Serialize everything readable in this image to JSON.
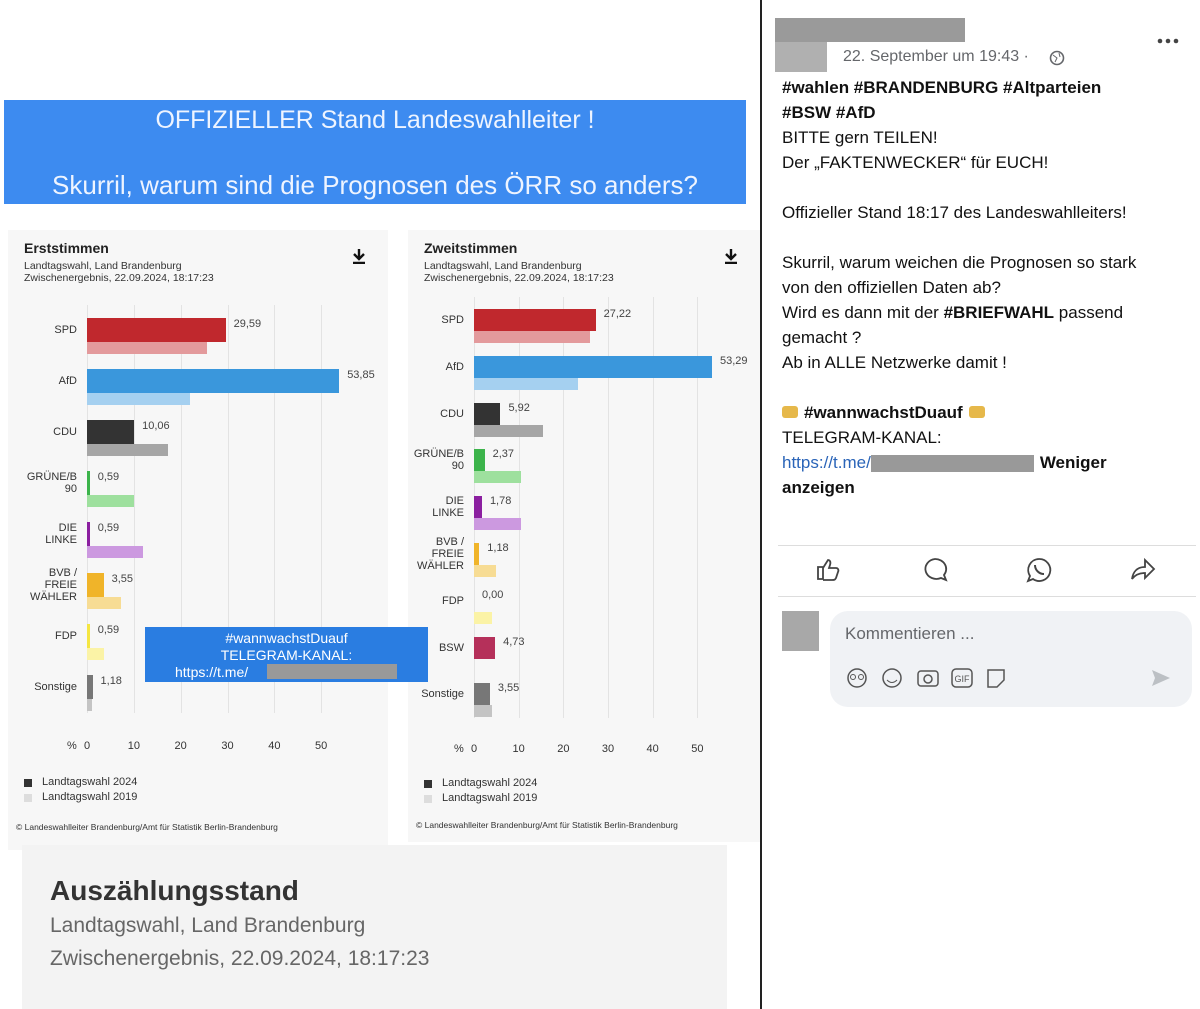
{
  "banner": {
    "line1": "OFFIZIELLER Stand Landeswahlleiter !",
    "line2": "Skurril, warum sind die Prognosen des ÖRR so anders?"
  },
  "chart_data": [
    {
      "type": "bar",
      "orientation": "horizontal",
      "title": "Erststimmen",
      "subtitle": [
        "Landtagswahl, Land Brandenburg",
        "Zwischenergebnis, 22.09.2024, 18:17:23"
      ],
      "categories": [
        "SPD",
        "AfD",
        "CDU",
        "GRÜNE/B\n90",
        "DIE\nLINKE",
        "BVB /\nFREIE\nWÄHLER",
        "FDP",
        "Sonstige"
      ],
      "series": [
        {
          "name": "Landtagswahl 2024",
          "color": "#333333",
          "colors": [
            "#c0282d",
            "#3a97dc",
            "#333333",
            "#3cb44b",
            "#8b1fa0",
            "#f0b429",
            "#f5e642",
            "#777777"
          ],
          "values": [
            29.59,
            53.85,
            10.06,
            0.59,
            0.59,
            3.55,
            0.59,
            1.18
          ],
          "value_labels": [
            "29,59",
            "53,85",
            "10,06",
            "0,59",
            "0,59",
            "3,55",
            "0,59",
            "1,18"
          ]
        },
        {
          "name": "Landtagswahl 2019",
          "color": "#dddddd",
          "colors": [
            "#e39a9c",
            "#a5d0f0",
            "#a6a6a6",
            "#9ee09e",
            "#cc99e0",
            "#f7dc94",
            "#fbf3a6",
            "#c4c4c4"
          ],
          "values": [
            25.6,
            22.0,
            17.3,
            10.0,
            12.0,
            7.3,
            3.6,
            1.1
          ]
        }
      ],
      "x_unit": "%",
      "xlim": [
        0,
        60
      ],
      "xticks": [
        0,
        10,
        20,
        30,
        40,
        50
      ],
      "source": "© Landeswahlleiter Brandenburg/Amt für Statistik Berlin-Brandenburg"
    },
    {
      "type": "bar",
      "orientation": "horizontal",
      "title": "Zweitstimmen",
      "subtitle": [
        "Landtagswahl, Land Brandenburg",
        "Zwischenergebnis, 22.09.2024, 18:17:23"
      ],
      "categories": [
        "SPD",
        "AfD",
        "CDU",
        "GRÜNE/B\n90",
        "DIE\nLINKE",
        "BVB /\nFREIE\nWÄHLER",
        "FDP",
        "BSW",
        "Sonstige"
      ],
      "series": [
        {
          "name": "Landtagswahl 2024",
          "color": "#333333",
          "colors": [
            "#c0282d",
            "#3a97dc",
            "#333333",
            "#3cb44b",
            "#8b1fa0",
            "#f0b429",
            "#f5e642",
            "#b5305a",
            "#777777"
          ],
          "values": [
            27.22,
            53.29,
            5.92,
            2.37,
            1.78,
            1.18,
            0.0,
            4.73,
            3.55
          ],
          "value_labels": [
            "27,22",
            "53,29",
            "5,92",
            "2,37",
            "1,78",
            "1,18",
            "0,00",
            "4,73",
            "3,55"
          ]
        },
        {
          "name": "Landtagswahl 2019",
          "color": "#dddddd",
          "colors": [
            "#e39a9c",
            "#a5d0f0",
            "#a6a6a6",
            "#9ee09e",
            "#cc99e0",
            "#f7dc94",
            "#fbf3a6",
            "#e0a0b8",
            "#c4c4c4"
          ],
          "values": [
            26.0,
            23.3,
            15.5,
            10.5,
            10.5,
            4.9,
            4.0,
            null,
            4.0
          ]
        }
      ],
      "x_unit": "%",
      "xlim": [
        0,
        60
      ],
      "xticks": [
        0,
        10,
        20,
        30,
        40,
        50
      ],
      "source": "© Landeswahlleiter Brandenburg/Amt für Statistik Berlin-Brandenburg"
    }
  ],
  "overlay": {
    "hashtag": "#wannwachstDuauf",
    "telegram": "TELEGRAM-KANAL:",
    "link": "https://t.me/"
  },
  "bottom_card": {
    "title": "Auszählungsstand",
    "line1": "Landtagswahl, Land Brandenburg",
    "line2": "Zwischenergebnis, 22.09.2024, 18:17:23"
  },
  "post": {
    "date": "22. September um 19:43 ·",
    "lines": [
      [
        {
          "text": "#wahlen #BRANDENBURG #Altparteien",
          "bold": true
        }
      ],
      [
        {
          "text": "#BSW #AfD",
          "bold": true
        }
      ],
      [
        {
          "text": "BITTE gern TEILEN!"
        }
      ],
      [
        {
          "text": "Der „FAKTENWECKER“ für EUCH!"
        }
      ],
      null,
      [
        {
          "text": "Offizieller Stand 18:17 des Landeswahlleiters!"
        }
      ],
      null,
      [
        {
          "text": "Skurril, warum weichen die Prognosen so stark"
        }
      ],
      [
        {
          "text": "von den offiziellen Daten ab?"
        }
      ],
      [
        {
          "text": "Wird es dann mit der "
        },
        {
          "text": "#BRIEFWAHL",
          "bold": true
        },
        {
          "text": " passend"
        }
      ],
      [
        {
          "text": "gemacht ?"
        }
      ],
      [
        {
          "text": "Ab in ALLE Netzwerke damit !"
        }
      ],
      null,
      [
        {
          "text": "#wannwachstDuauf",
          "bold": true,
          "emoji": true
        }
      ],
      [
        {
          "text": "TELEGRAM-KANAL:"
        }
      ],
      [
        {
          "text": "https://t.me/",
          "link": true,
          "redacted": true
        },
        {
          "text": "Weniger",
          "bold": true
        }
      ],
      [
        {
          "text": "anzeigen",
          "bold": true
        }
      ]
    ],
    "comment_placeholder": "Kommentieren ...",
    "gif_label": "GIF"
  }
}
